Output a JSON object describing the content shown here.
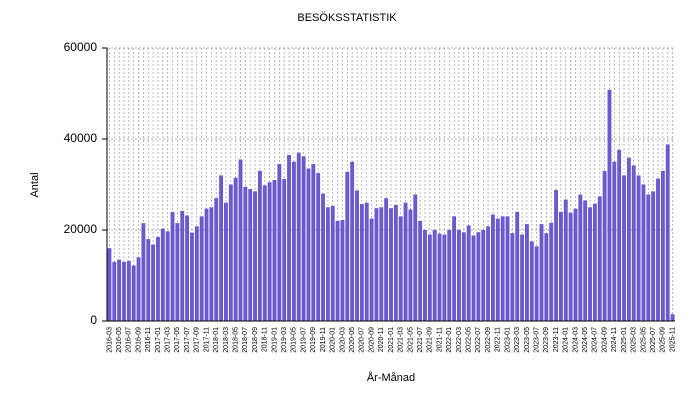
{
  "chart_data": {
    "type": "bar",
    "title": "BESÖKSSTATISTIK",
    "x_label": "År-Månad",
    "y_label": "Antal",
    "categories": [
      "2016-03",
      null,
      "2016-05",
      null,
      "2016-07",
      null,
      "2016-09",
      null,
      "2016-11",
      null,
      "2017-01",
      null,
      "2017-03",
      null,
      "2017-05",
      null,
      "2017-07",
      null,
      "2017-09",
      null,
      "2017-11",
      null,
      "2018-01",
      null,
      "2018-03",
      null,
      "2018-05",
      null,
      "2018-07",
      null,
      "2018-09",
      null,
      "2018-11",
      null,
      "2019-01",
      null,
      "2019-03",
      null,
      "2019-05",
      null,
      "2019-07",
      null,
      "2019-09",
      null,
      "2019-11",
      null,
      "2020-01",
      null,
      "2020-03",
      null,
      "2020-05",
      null,
      "2020-07",
      null,
      "2020-09",
      null,
      "2020-11",
      null,
      "2021-01",
      null,
      "2021-03",
      null,
      "2021-05",
      null,
      "2021-07",
      null,
      "2021-09",
      null,
      "2021-11",
      null,
      "2022-01",
      null,
      "2022-03",
      null,
      "2022-05",
      null,
      "2022-07",
      null,
      "2022-09",
      null,
      "2022-11",
      null,
      "2023-01",
      null,
      "2023-03",
      null,
      "2023-05",
      null,
      "2023-07",
      null,
      "2023-09",
      null,
      "2023-11",
      null,
      "2024-01",
      null,
      "2024-03",
      null,
      "2024-05",
      null,
      "2024-07",
      null,
      "2024-09",
      null,
      "2024-11",
      null,
      "2025-01",
      null,
      "2025-03",
      null,
      "2025-05",
      null,
      "2025-07",
      null,
      "2025-09",
      null,
      "2025-11"
    ],
    "values": [
      16000,
      13000,
      13500,
      13000,
      13200,
      12200,
      14000,
      21500,
      18000,
      16800,
      18500,
      20300,
      19700,
      24000,
      21500,
      24200,
      23200,
      19400,
      20800,
      23000,
      24700,
      25000,
      27000,
      32000,
      26000,
      30000,
      31500,
      35500,
      29500,
      29000,
      28500,
      33000,
      29800,
      30500,
      31000,
      34500,
      31200,
      36500,
      35000,
      37000,
      36200,
      33500,
      34500,
      32500,
      28000,
      25000,
      25300,
      22000,
      22200,
      32800,
      35000,
      28700,
      25700,
      26000,
      22500,
      24800,
      25000,
      27000,
      24800,
      25500,
      23000,
      26000,
      24500,
      27800,
      22000,
      20000,
      19000,
      20000,
      19200,
      19000,
      20000,
      23000,
      20000,
      19500,
      21000,
      18800,
      19500,
      20000,
      20800,
      23400,
      22500,
      23000,
      23000,
      19300,
      24000,
      19000,
      21300,
      17500,
      16400,
      21300,
      19300,
      21600,
      28800,
      24000,
      26700,
      23800,
      24700,
      27800,
      26500,
      25000,
      25800,
      27400,
      33000,
      50800,
      35000,
      37600,
      32000,
      35900,
      34200,
      32000,
      30000,
      27800,
      28500,
      31300,
      33000,
      38800,
      1500
    ],
    "color": "#6a5acd",
    "ylim": [
      0,
      60000
    ],
    "yticks": [
      0,
      20000,
      40000,
      60000
    ],
    "grid": true
  }
}
